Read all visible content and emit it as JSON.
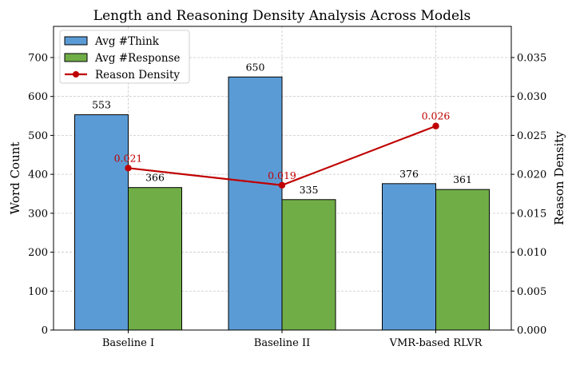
{
  "chart_data": {
    "type": "bar",
    "title": "Length and Reasoning Density Analysis Across Models",
    "categories": [
      "Baseline I",
      "Baseline II",
      "VMR-based RLVR"
    ],
    "series": [
      {
        "name": "Avg #Think",
        "values": [
          553,
          650,
          376
        ],
        "color": "#5b9bd5",
        "labels": [
          "553",
          "650",
          "376"
        ]
      },
      {
        "name": "Avg #Response",
        "values": [
          366,
          335,
          361
        ],
        "color": "#70ad47",
        "labels": [
          "366",
          "335",
          "361"
        ]
      }
    ],
    "line_series": {
      "name": "Reason Density",
      "values": [
        0.0208,
        0.0186,
        0.0262
      ],
      "labels": [
        "0.021",
        "0.019",
        "0.026"
      ],
      "color": "#c00000",
      "axis": "right"
    },
    "ylabel": "Word Count",
    "ylabel_right": "Reason Density",
    "ylim": [
      0,
      780
    ],
    "ylim_right": [
      0,
      0.039
    ],
    "yticks": [
      "0",
      "100",
      "200",
      "300",
      "400",
      "500",
      "600",
      "700"
    ],
    "yticks_values": [
      0,
      100,
      200,
      300,
      400,
      500,
      600,
      700
    ],
    "yticks_right": [
      "0.000",
      "0.005",
      "0.010",
      "0.015",
      "0.020",
      "0.025",
      "0.030",
      "0.035"
    ],
    "yticks_right_values": [
      0,
      0.005,
      0.01,
      0.015,
      0.02,
      0.025,
      0.03,
      0.035
    ],
    "legend_position": "top-left",
    "grid": true
  }
}
